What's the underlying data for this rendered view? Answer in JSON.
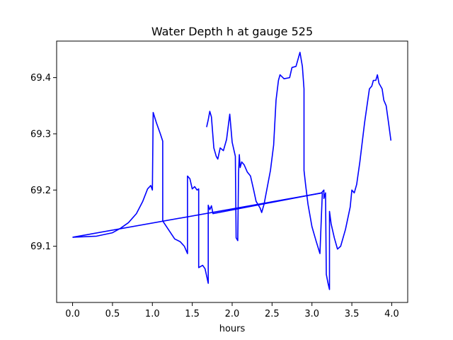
{
  "chart_data": {
    "type": "line",
    "title": "Water Depth h at gauge 525",
    "xlabel": "hours",
    "ylabel": "",
    "xlim": [
      -0.2,
      4.2
    ],
    "ylim": [
      69.0,
      69.465
    ],
    "xticks": [
      0.0,
      0.5,
      1.0,
      1.5,
      2.0,
      2.5,
      3.0,
      3.5,
      4.0
    ],
    "xtick_labels": [
      "0.0",
      "0.5",
      "1.0",
      "1.5",
      "2.0",
      "2.5",
      "3.0",
      "3.5",
      "4.0"
    ],
    "yticks": [
      69.1,
      69.2,
      69.3,
      69.4
    ],
    "ytick_labels": [
      "69.1",
      "69.2",
      "69.3",
      "69.4"
    ],
    "grid": false,
    "line_color": "#0000ff",
    "series": [
      {
        "values": [
          [
            0.0,
            69.116
          ],
          [
            0.3,
            69.118
          ],
          [
            0.5,
            69.124
          ],
          [
            0.6,
            69.132
          ],
          [
            0.7,
            69.142
          ],
          [
            0.8,
            69.158
          ],
          [
            0.88,
            69.18
          ],
          [
            0.94,
            69.202
          ],
          [
            0.98,
            69.208
          ],
          [
            1.0,
            69.2
          ],
          [
            1.01,
            69.338
          ],
          [
            1.05,
            69.32
          ],
          [
            1.1,
            69.3
          ],
          [
            1.13,
            69.287
          ],
          [
            1.13,
            69.145
          ],
          [
            1.2,
            69.13
          ],
          [
            1.28,
            69.113
          ],
          [
            1.35,
            69.108
          ],
          [
            1.4,
            69.1
          ],
          [
            1.44,
            69.087
          ],
          [
            1.44,
            69.225
          ],
          [
            1.47,
            69.22
          ],
          [
            1.5,
            69.202
          ],
          [
            1.53,
            69.206
          ],
          [
            1.56,
            69.2
          ],
          [
            1.58,
            69.202
          ],
          [
            1.58,
            69.062
          ],
          [
            1.63,
            69.066
          ],
          [
            1.66,
            69.06
          ],
          [
            1.7,
            69.034
          ],
          [
            1.7,
            69.173
          ],
          [
            1.72,
            69.165
          ],
          [
            1.74,
            69.172
          ],
          [
            1.76,
            69.158
          ],
          [
            3.12,
            69.195
          ],
          [
            3.15,
            69.2
          ],
          [
            3.15,
            69.185
          ],
          [
            3.17,
            69.195
          ],
          [
            3.18,
            69.05
          ],
          [
            3.2,
            69.035
          ],
          [
            3.22,
            69.023
          ],
          [
            3.22,
            69.162
          ],
          [
            3.24,
            69.14
          ],
          [
            3.28,
            69.115
          ],
          [
            3.32,
            69.095
          ],
          [
            3.36,
            69.1
          ],
          [
            3.42,
            69.13
          ],
          [
            3.48,
            69.17
          ],
          [
            3.5,
            69.2
          ],
          [
            3.53,
            69.195
          ],
          [
            3.56,
            69.21
          ],
          [
            3.6,
            69.25
          ],
          [
            3.66,
            69.32
          ],
          [
            3.72,
            69.38
          ],
          [
            3.75,
            69.385
          ],
          [
            3.77,
            69.395
          ],
          [
            3.8,
            69.395
          ],
          [
            3.82,
            69.405
          ],
          [
            3.84,
            69.39
          ],
          [
            3.88,
            69.38
          ],
          [
            3.9,
            69.36
          ],
          [
            3.93,
            69.35
          ],
          [
            3.96,
            69.32
          ],
          [
            3.99,
            69.288
          ]
        ]
      },
      {
        "values": [
          [
            3.13,
            69.195
          ],
          [
            3.1,
            69.087
          ],
          [
            3.05,
            69.11
          ],
          [
            3.0,
            69.135
          ],
          [
            2.95,
            69.175
          ],
          [
            2.92,
            69.21
          ],
          [
            2.9,
            69.235
          ],
          [
            2.9,
            69.38
          ],
          [
            2.88,
            69.42
          ],
          [
            2.85,
            69.445
          ],
          [
            2.8,
            69.42
          ],
          [
            2.75,
            69.418
          ],
          [
            2.72,
            69.4
          ],
          [
            2.65,
            69.398
          ],
          [
            2.6,
            69.405
          ],
          [
            2.58,
            69.395
          ],
          [
            2.55,
            69.36
          ],
          [
            2.52,
            69.28
          ],
          [
            2.48,
            69.235
          ],
          [
            2.44,
            69.205
          ],
          [
            2.4,
            69.175
          ],
          [
            2.37,
            69.16
          ],
          [
            2.35,
            69.168
          ],
          [
            2.3,
            69.18
          ],
          [
            2.27,
            69.2
          ],
          [
            2.23,
            69.225
          ],
          [
            2.19,
            69.232
          ],
          [
            2.15,
            69.245
          ],
          [
            2.12,
            69.25
          ],
          [
            2.1,
            69.24
          ],
          [
            2.09,
            69.263
          ],
          [
            2.08,
            69.23
          ],
          [
            2.07,
            69.11
          ],
          [
            2.05,
            69.115
          ],
          [
            2.04,
            69.26
          ],
          [
            2.0,
            69.285
          ],
          [
            1.97,
            69.335
          ],
          [
            1.93,
            69.29
          ],
          [
            1.89,
            69.27
          ],
          [
            1.85,
            69.275
          ],
          [
            1.82,
            69.255
          ],
          [
            1.8,
            69.26
          ],
          [
            1.77,
            69.275
          ],
          [
            1.74,
            69.33
          ],
          [
            1.72,
            69.34
          ],
          [
            1.7,
            69.325
          ],
          [
            1.68,
            69.312
          ]
        ]
      },
      {
        "values": [
          [
            0.0,
            69.116
          ],
          [
            3.13,
            69.195
          ]
        ]
      }
    ]
  }
}
